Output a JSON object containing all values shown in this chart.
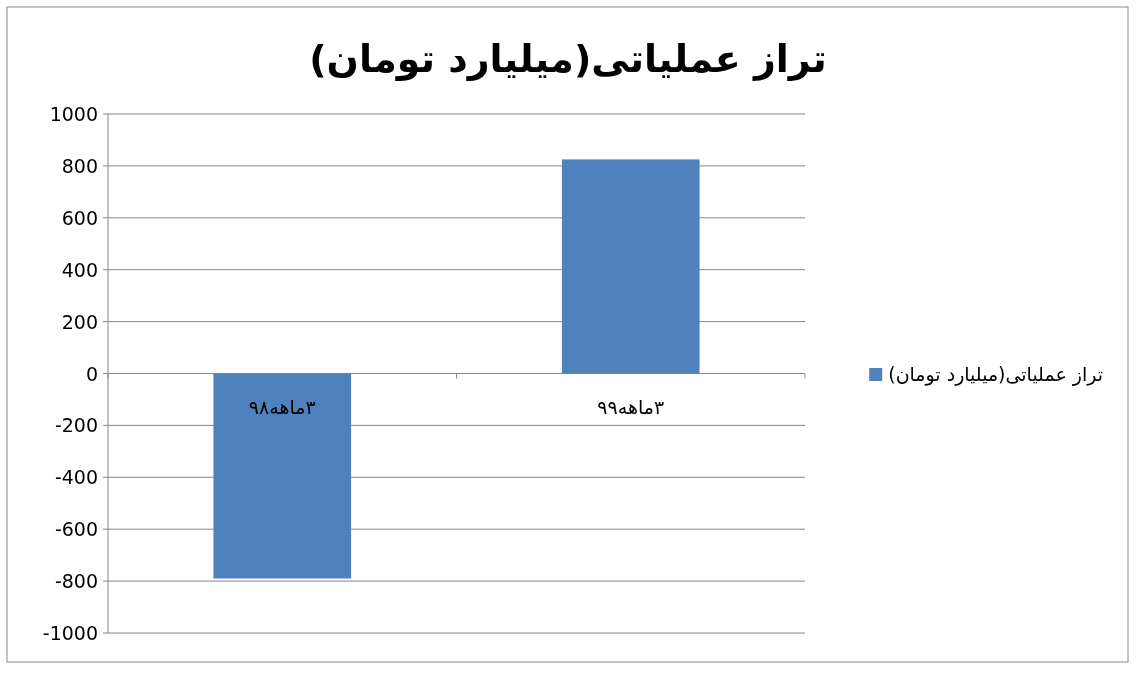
{
  "chart_data": {
    "type": "bar",
    "title": "تراز عملیاتی(میلیارد تومان)",
    "categories": [
      "۳ماهه۹۸",
      "۳ماهه۹۹"
    ],
    "series": [
      {
        "name": "تراز عملیاتی(میلیارد تومان)",
        "color": "#4f81bd",
        "values": [
          -790,
          825
        ]
      }
    ],
    "ylim": [
      -1000,
      1000
    ],
    "yticks": [
      -1000,
      -800,
      -600,
      -400,
      -200,
      0,
      200,
      400,
      600,
      800,
      1000
    ],
    "grid": "y",
    "legend": "right"
  }
}
